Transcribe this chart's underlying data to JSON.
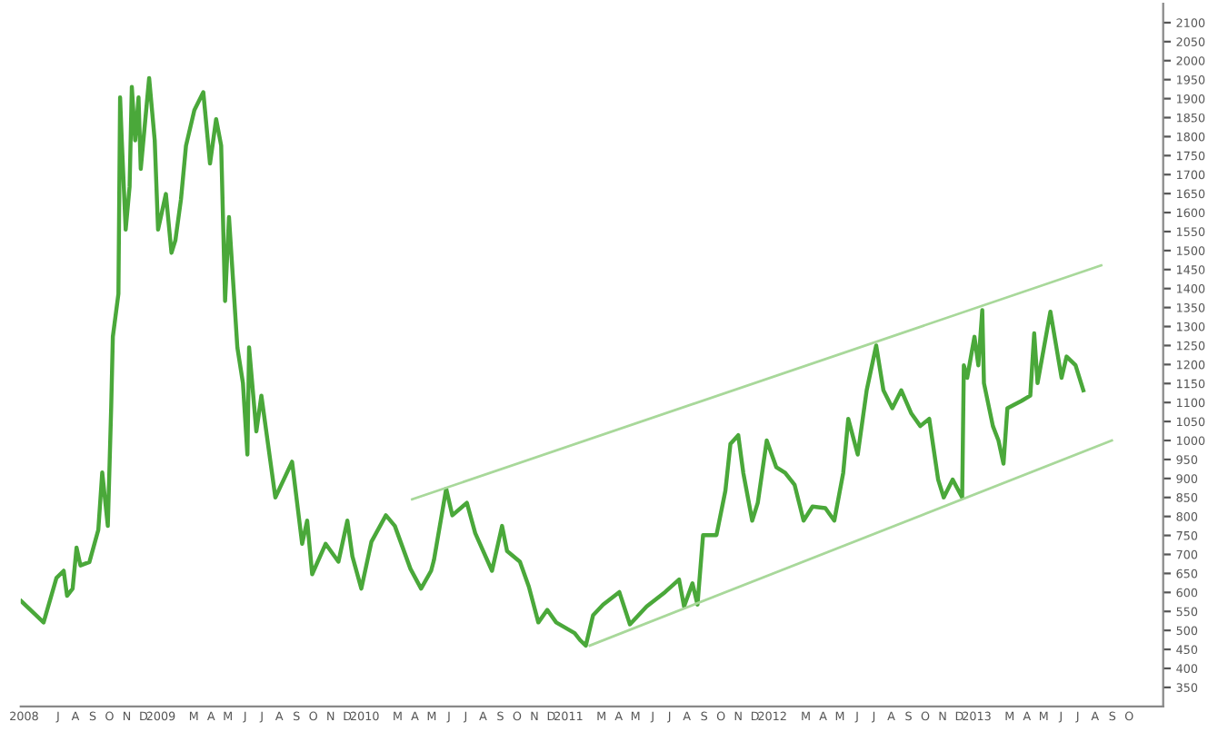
{
  "chart_data": {
    "type": "line",
    "x": [
      "2008-04-26",
      "2008-05-19",
      "2008-06-05",
      "2008-06-28",
      "2008-07-11",
      "2008-07-17",
      "2008-07-27",
      "2008-08-03",
      "2008-08-10",
      "2008-08-26",
      "2008-09-11",
      "2008-09-18",
      "2008-09-28",
      "2008-10-04",
      "2008-10-07",
      "2008-10-17",
      "2008-10-20",
      "2008-10-23",
      "2008-10-30",
      "2008-11-06",
      "2008-11-10",
      "2008-11-16",
      "2008-11-22",
      "2008-11-26",
      "2008-12-11",
      "2008-12-21",
      "2008-12-27",
      "2009-01-10",
      "2009-01-20",
      "2009-01-27",
      "2009-02-06",
      "2009-02-15",
      "2009-03-02",
      "2009-03-18",
      "2009-03-30",
      "2009-04-10",
      "2009-04-19",
      "2009-04-26",
      "2009-05-03",
      "2009-05-18",
      "2009-05-28",
      "2009-06-05",
      "2009-06-08",
      "2009-06-21",
      "2009-06-30",
      "2009-07-25",
      "2009-08-09",
      "2009-08-24",
      "2009-09-11",
      "2009-09-20",
      "2009-09-29",
      "2009-10-23",
      "2009-11-15",
      "2009-12-01",
      "2009-12-10",
      "2009-12-26",
      "2010-01-13",
      "2010-02-08",
      "2010-02-24",
      "2010-03-24",
      "2010-04-12",
      "2010-04-30",
      "2010-05-05",
      "2010-05-27",
      "2010-06-07",
      "2010-07-03",
      "2010-07-18",
      "2010-08-17",
      "2010-09-04",
      "2010-09-13",
      "2010-10-06",
      "2010-10-22",
      "2010-11-08",
      "2010-11-24",
      "2010-12-10",
      "2011-01-12",
      "2011-01-22",
      "2011-02-01",
      "2011-02-14",
      "2011-03-04",
      "2011-04-02",
      "2011-04-21",
      "2011-05-21",
      "2011-06-23",
      "2011-07-18",
      "2011-07-27",
      "2011-08-11",
      "2011-08-20",
      "2011-08-30",
      "2011-09-23",
      "2011-10-09",
      "2011-10-18",
      "2011-11-01",
      "2011-11-10",
      "2011-11-26",
      "2011-12-06",
      "2011-12-22",
      "2012-01-08",
      "2012-01-24",
      "2012-02-10",
      "2012-02-26",
      "2012-03-13",
      "2012-04-05",
      "2012-04-21",
      "2012-05-07",
      "2012-05-16",
      "2012-06-02",
      "2012-06-18",
      "2012-07-05",
      "2012-07-18",
      "2012-08-03",
      "2012-08-19",
      "2012-09-06",
      "2012-09-22",
      "2012-10-08",
      "2012-10-24",
      "2012-11-03",
      "2012-11-19",
      "2012-12-06",
      "2012-12-09",
      "2012-12-15",
      "2012-12-28",
      "2013-01-04",
      "2013-01-11",
      "2013-01-14",
      "2013-01-30",
      "2013-02-09",
      "2013-02-18",
      "2013-02-25",
      "2013-03-22",
      "2013-04-07",
      "2013-04-14",
      "2013-04-20",
      "2013-05-13",
      "2013-06-02",
      "2013-06-11",
      "2013-06-27",
      "2013-07-11"
    ],
    "series": [
      {
        "color": "#4aa83a",
        "values": [
          577,
          545,
          521,
          638,
          657,
          591,
          610,
          718,
          671,
          680,
          765,
          916,
          775,
          1085,
          1273,
          1386,
          1903,
          1790,
          1555,
          1668,
          1931,
          1790,
          1903,
          1715,
          1954,
          1790,
          1555,
          1649,
          1494,
          1527,
          1635,
          1776,
          1870,
          1917,
          1729,
          1846,
          1776,
          1367,
          1588,
          1245,
          1151,
          963,
          1245,
          1024,
          1118,
          850,
          897,
          944,
          728,
          789,
          648,
          728,
          681,
          789,
          695,
          610,
          733,
          803,
          775,
          662,
          610,
          657,
          685,
          873,
          803,
          836,
          756,
          657,
          775,
          709,
          681,
          615,
          521,
          554,
          521,
          493,
          474,
          460,
          540,
          568,
          601,
          516,
          563,
          601,
          634,
          563,
          624,
          568,
          751,
          751,
          868,
          991,
          1014,
          915,
          789,
          836,
          1000,
          930,
          915,
          883,
          789,
          826,
          822,
          789,
          915,
          1057,
          963,
          1132,
          1250,
          1132,
          1085,
          1132,
          1071,
          1038,
          1057,
          897,
          850,
          897,
          850,
          1198,
          1165,
          1273,
          1198,
          1343,
          1151,
          1038,
          1000,
          939,
          1085,
          1104,
          1118,
          1282,
          1151,
          1339,
          1165,
          1221,
          1198,
          1132
        ]
      },
      {
        "type": "line",
        "color": "#a8d89a",
        "x": [
          "2010-03-27",
          "2013-08-12"
        ],
        "values": [
          845,
          1461
        ]
      },
      {
        "type": "line",
        "color": "#a8d89a",
        "x": [
          "2011-02-08",
          "2013-08-31"
        ],
        "values": [
          460,
          1000
        ]
      }
    ],
    "xlim": [
      "2008-04-25",
      "2013-12-01"
    ],
    "xticks": [
      {
        "value": "2008-05-01",
        "label": "2008"
      },
      {
        "value": "2008-07-01",
        "label": "J"
      },
      {
        "value": "2008-08-01",
        "label": "A"
      },
      {
        "value": "2008-09-01",
        "label": "S"
      },
      {
        "value": "2008-10-01",
        "label": "O"
      },
      {
        "value": "2008-11-01",
        "label": "N"
      },
      {
        "value": "2008-12-01",
        "label": "D"
      },
      {
        "value": "2009-01-01",
        "label": "2009"
      },
      {
        "value": "2009-03-01",
        "label": "M"
      },
      {
        "value": "2009-04-01",
        "label": "A"
      },
      {
        "value": "2009-05-01",
        "label": "M"
      },
      {
        "value": "2009-06-01",
        "label": "J"
      },
      {
        "value": "2009-07-01",
        "label": "J"
      },
      {
        "value": "2009-08-01",
        "label": "A"
      },
      {
        "value": "2009-09-01",
        "label": "S"
      },
      {
        "value": "2009-10-01",
        "label": "O"
      },
      {
        "value": "2009-11-01",
        "label": "N"
      },
      {
        "value": "2009-12-01",
        "label": "D"
      },
      {
        "value": "2010-01-01",
        "label": "2010"
      },
      {
        "value": "2010-03-01",
        "label": "M"
      },
      {
        "value": "2010-04-01",
        "label": "A"
      },
      {
        "value": "2010-05-01",
        "label": "M"
      },
      {
        "value": "2010-06-01",
        "label": "J"
      },
      {
        "value": "2010-07-01",
        "label": "J"
      },
      {
        "value": "2010-08-01",
        "label": "A"
      },
      {
        "value": "2010-09-01",
        "label": "S"
      },
      {
        "value": "2010-10-01",
        "label": "O"
      },
      {
        "value": "2010-11-01",
        "label": "N"
      },
      {
        "value": "2010-12-01",
        "label": "D"
      },
      {
        "value": "2011-01-01",
        "label": "2011"
      },
      {
        "value": "2011-03-01",
        "label": "M"
      },
      {
        "value": "2011-04-01",
        "label": "A"
      },
      {
        "value": "2011-05-01",
        "label": "M"
      },
      {
        "value": "2011-06-01",
        "label": "J"
      },
      {
        "value": "2011-07-01",
        "label": "J"
      },
      {
        "value": "2011-08-01",
        "label": "A"
      },
      {
        "value": "2011-09-01",
        "label": "S"
      },
      {
        "value": "2011-10-01",
        "label": "O"
      },
      {
        "value": "2011-11-01",
        "label": "N"
      },
      {
        "value": "2011-12-01",
        "label": "D"
      },
      {
        "value": "2012-01-01",
        "label": "2012"
      },
      {
        "value": "2012-03-01",
        "label": "M"
      },
      {
        "value": "2012-04-01",
        "label": "A"
      },
      {
        "value": "2012-05-01",
        "label": "M"
      },
      {
        "value": "2012-06-01",
        "label": "J"
      },
      {
        "value": "2012-07-01",
        "label": "J"
      },
      {
        "value": "2012-08-01",
        "label": "A"
      },
      {
        "value": "2012-09-01",
        "label": "S"
      },
      {
        "value": "2012-10-01",
        "label": "O"
      },
      {
        "value": "2012-11-01",
        "label": "N"
      },
      {
        "value": "2012-12-01",
        "label": "D"
      },
      {
        "value": "2013-01-01",
        "label": "2013"
      },
      {
        "value": "2013-03-01",
        "label": "M"
      },
      {
        "value": "2013-04-01",
        "label": "A"
      },
      {
        "value": "2013-05-01",
        "label": "M"
      },
      {
        "value": "2013-06-01",
        "label": "J"
      },
      {
        "value": "2013-07-01",
        "label": "J"
      },
      {
        "value": "2013-08-01",
        "label": "A"
      },
      {
        "value": "2013-09-01",
        "label": "S"
      },
      {
        "value": "2013-10-01",
        "label": "O"
      }
    ],
    "ylim": [
      300,
      2150
    ],
    "yticks": [
      350,
      400,
      450,
      500,
      550,
      600,
      650,
      700,
      750,
      800,
      850,
      900,
      950,
      1000,
      1050,
      1100,
      1150,
      1200,
      1250,
      1300,
      1350,
      1400,
      1450,
      1500,
      1550,
      1600,
      1650,
      1700,
      1750,
      1800,
      1850,
      1900,
      1950,
      2000,
      2050,
      2100
    ],
    "grid": false,
    "legend": false,
    "marker": "none",
    "line_style": "solid"
  }
}
